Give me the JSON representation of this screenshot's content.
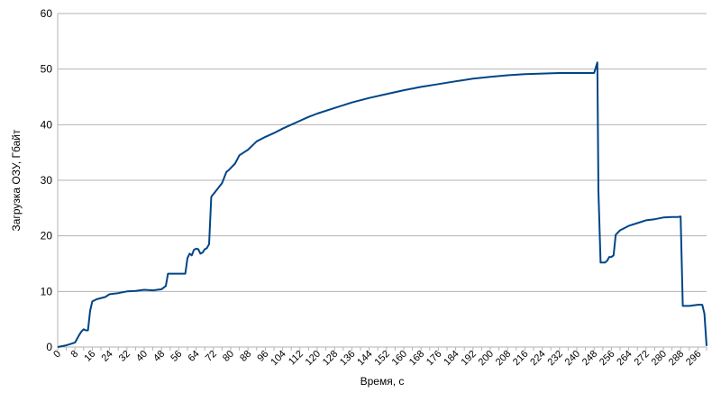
{
  "chart_data": {
    "type": "line",
    "xlabel": "Время, с",
    "ylabel": "Загрузка ОЗУ, Гбайт",
    "xlim": [
      0,
      300
    ],
    "ylim": [
      0,
      60
    ],
    "y_ticks": [
      0,
      10,
      20,
      30,
      40,
      50,
      60
    ],
    "x_ticks": [
      0,
      8,
      16,
      24,
      32,
      40,
      48,
      56,
      64,
      72,
      80,
      88,
      96,
      104,
      112,
      120,
      128,
      136,
      144,
      152,
      160,
      168,
      176,
      184,
      192,
      200,
      208,
      216,
      224,
      232,
      240,
      248,
      256,
      264,
      272,
      280,
      288,
      296
    ],
    "grid": true,
    "legend": "none",
    "color": "#004586",
    "x": [
      0,
      4,
      8,
      10,
      11,
      12,
      13,
      14,
      15,
      16,
      18,
      22,
      24,
      28,
      32,
      36,
      40,
      44,
      48,
      50,
      51,
      54,
      58,
      59,
      60,
      61,
      62,
      63,
      64,
      65,
      66,
      67,
      68,
      69,
      70,
      71,
      71.5,
      72,
      74,
      76,
      78,
      79,
      80,
      82,
      84,
      86,
      88,
      92,
      96,
      100,
      104,
      108,
      112,
      116,
      120,
      128,
      136,
      144,
      152,
      160,
      168,
      176,
      184,
      192,
      200,
      208,
      216,
      224,
      232,
      240,
      248,
      249.5,
      250,
      251,
      252,
      253,
      254,
      255,
      256,
      257,
      258,
      260,
      264,
      268,
      272,
      276,
      280,
      284,
      287,
      288,
      289,
      292,
      296,
      298,
      299,
      300
    ],
    "values": [
      0,
      0.3,
      0.8,
      2.2,
      2.8,
      3.2,
      3,
      3,
      6.5,
      8.2,
      8.6,
      9,
      9.5,
      9.7,
      10,
      10.1,
      10.3,
      10.2,
      10.4,
      11,
      13.2,
      13.2,
      13.2,
      13.2,
      16,
      16.8,
      16.5,
      17.5,
      17.7,
      17.6,
      16.8,
      17,
      17.6,
      17.8,
      18.5,
      27,
      27.3,
      27.5,
      28.5,
      29.5,
      31.5,
      31.8,
      32.2,
      33,
      34.5,
      35,
      35.5,
      37,
      37.8,
      38.5,
      39.3,
      40,
      40.7,
      41.4,
      42,
      43,
      44,
      44.8,
      45.5,
      46.2,
      46.8,
      47.3,
      47.8,
      48.3,
      48.6,
      48.9,
      49.1,
      49.2,
      49.3,
      49.3,
      49.3,
      51.2,
      28,
      15.2,
      15.2,
      15.2,
      15.5,
      16.2,
      16.2,
      16.5,
      20.2,
      21,
      21.8,
      22.3,
      22.8,
      23,
      23.3,
      23.4,
      23.4,
      23.5,
      7.4,
      7.4,
      7.6,
      7.6,
      6,
      0.2
    ]
  }
}
